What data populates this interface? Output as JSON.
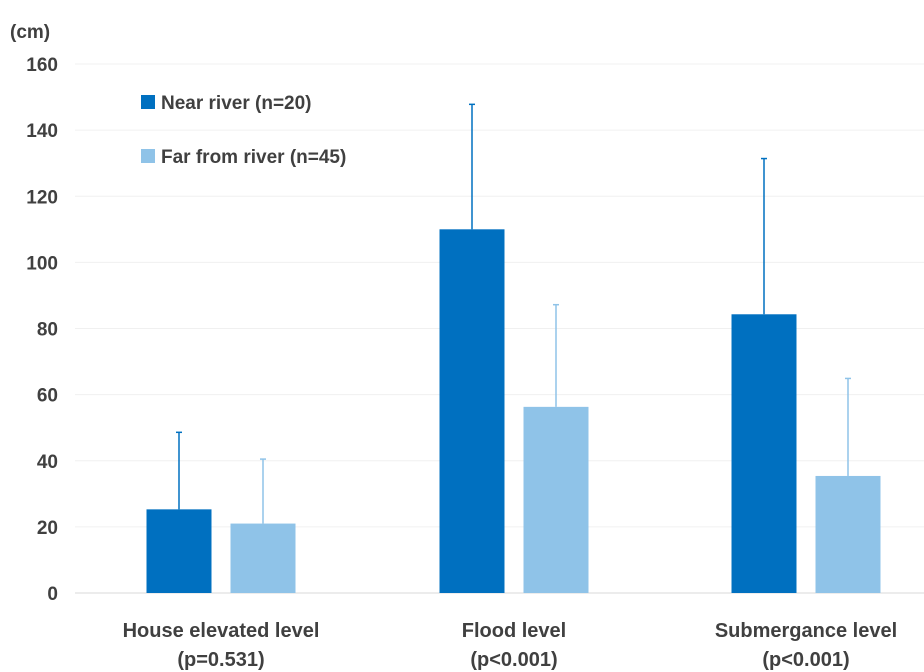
{
  "chart_data": {
    "type": "bar",
    "ylabel": "(cm)",
    "ylim": [
      0,
      160
    ],
    "yticks": [
      0,
      20,
      40,
      60,
      80,
      100,
      120,
      140,
      160
    ],
    "grid": true,
    "legend_position": "top-left",
    "categories": [
      {
        "name": "House elevated level",
        "note": "(p=0.531)"
      },
      {
        "name": "Flood level",
        "note": "(p<0.001)"
      },
      {
        "name": "Submergance level",
        "note": "(p<0.001)"
      }
    ],
    "series": [
      {
        "name": "Near river (n=20)",
        "color": "#0070c0",
        "values": [
          25.3,
          110.0,
          84.3
        ],
        "error_upper": [
          48.6,
          147.8,
          131.4
        ]
      },
      {
        "name": "Far from river (n=45)",
        "color": "#8fc3e8",
        "values": [
          21.0,
          56.3,
          35.4
        ],
        "error_upper": [
          40.5,
          87.2,
          64.9
        ]
      }
    ]
  }
}
